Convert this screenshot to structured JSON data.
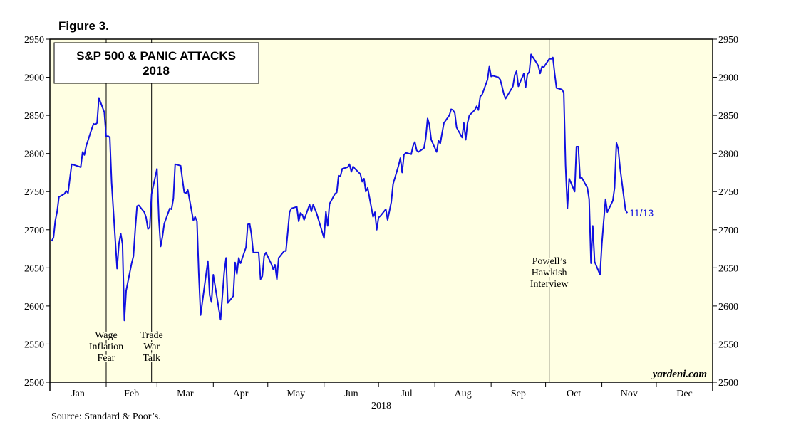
{
  "figure_label": "Figure 3.",
  "source": "Source: Standard & Poor’s.",
  "colors": {
    "line": "#1010e0",
    "plot_bg": "#ffffe3",
    "frame": "#000000"
  },
  "chart_data": {
    "type": "line",
    "title": "S&P 500 & PANIC ATTACKS",
    "subtitle": "2018",
    "xlabel": "2018",
    "ylabel": "",
    "xlim": [
      0,
      365
    ],
    "ylim": [
      2500,
      2950
    ],
    "y_ticks": [
      2500,
      2550,
      2600,
      2650,
      2700,
      2750,
      2800,
      2850,
      2900,
      2950
    ],
    "y_tick_labels": [
      "2500",
      "2550",
      "2600",
      "2650",
      "2700",
      "2750",
      "2800",
      "2850",
      "2900",
      "2950"
    ],
    "months": [
      "Jan",
      "Feb",
      "Mar",
      "Apr",
      "May",
      "Jun",
      "Jul",
      "Aug",
      "Sep",
      "Oct",
      "Nov",
      "Dec"
    ],
    "grid": false,
    "credit": "yardeni.com",
    "end_label": {
      "text": "11/13",
      "day": 316,
      "value": 2722
    },
    "annotations": [
      {
        "day": 31,
        "lines": [
          "Wage",
          "Inflation",
          "Fear"
        ],
        "anchor": "bottom"
      },
      {
        "day": 56,
        "lines": [
          "Trade",
          "War",
          "Talk"
        ],
        "anchor": "bottom"
      },
      {
        "day": 275,
        "lines": [
          "Powell’s",
          "Hawkish",
          "Interview"
        ],
        "anchor": "middle"
      }
    ],
    "series": [
      {
        "points": [
          [
            1,
            2685
          ],
          [
            2,
            2690
          ],
          [
            3,
            2712
          ],
          [
            4,
            2724
          ],
          [
            5,
            2743
          ],
          [
            8,
            2747
          ],
          [
            9,
            2751
          ],
          [
            10,
            2748
          ],
          [
            11,
            2767
          ],
          [
            12,
            2786
          ],
          [
            16,
            2783
          ],
          [
            17,
            2782
          ],
          [
            18,
            2802
          ],
          [
            19,
            2798
          ],
          [
            20,
            2810
          ],
          [
            23,
            2832
          ],
          [
            24,
            2839
          ],
          [
            25,
            2838
          ],
          [
            26,
            2840
          ],
          [
            27,
            2873
          ],
          [
            30,
            2854
          ],
          [
            31,
            2822
          ],
          [
            32,
            2823
          ],
          [
            33,
            2821
          ],
          [
            34,
            2762
          ],
          [
            37,
            2649
          ],
          [
            38,
            2681
          ],
          [
            39,
            2695
          ],
          [
            40,
            2681
          ],
          [
            41,
            2581
          ],
          [
            42,
            2620
          ],
          [
            45,
            2656
          ],
          [
            46,
            2665
          ],
          [
            47,
            2701
          ],
          [
            48,
            2731
          ],
          [
            49,
            2732
          ],
          [
            52,
            2723
          ],
          [
            53,
            2716
          ],
          [
            54,
            2701
          ],
          [
            55,
            2703
          ],
          [
            56,
            2747
          ],
          [
            59,
            2780
          ],
          [
            60,
            2714
          ],
          [
            61,
            2678
          ],
          [
            62,
            2691
          ],
          [
            63,
            2708
          ],
          [
            66,
            2728
          ],
          [
            67,
            2727
          ],
          [
            68,
            2741
          ],
          [
            69,
            2786
          ],
          [
            72,
            2784
          ],
          [
            73,
            2766
          ],
          [
            74,
            2749
          ],
          [
            75,
            2748
          ],
          [
            76,
            2752
          ],
          [
            79,
            2712
          ],
          [
            80,
            2717
          ],
          [
            81,
            2711
          ],
          [
            82,
            2643
          ],
          [
            83,
            2588
          ],
          [
            86,
            2641
          ],
          [
            87,
            2659
          ],
          [
            88,
            2614
          ],
          [
            89,
            2605
          ],
          [
            90,
            2641
          ],
          [
            94,
            2582
          ],
          [
            95,
            2614
          ],
          [
            96,
            2644
          ],
          [
            97,
            2663
          ],
          [
            98,
            2604
          ],
          [
            101,
            2613
          ],
          [
            102,
            2657
          ],
          [
            103,
            2642
          ],
          [
            104,
            2663
          ],
          [
            105,
            2656
          ],
          [
            108,
            2677
          ],
          [
            109,
            2707
          ],
          [
            110,
            2708
          ],
          [
            111,
            2694
          ],
          [
            112,
            2670
          ],
          [
            115,
            2670
          ],
          [
            116,
            2635
          ],
          [
            117,
            2639
          ],
          [
            118,
            2666
          ],
          [
            119,
            2670
          ],
          [
            122,
            2655
          ],
          [
            123,
            2648
          ],
          [
            124,
            2654
          ],
          [
            125,
            2635
          ],
          [
            126,
            2663
          ],
          [
            129,
            2672
          ],
          [
            130,
            2672
          ],
          [
            131,
            2697
          ],
          [
            132,
            2723
          ],
          [
            133,
            2728
          ],
          [
            136,
            2730
          ],
          [
            137,
            2711
          ],
          [
            138,
            2722
          ],
          [
            139,
            2720
          ],
          [
            140,
            2713
          ],
          [
            143,
            2733
          ],
          [
            144,
            2724
          ],
          [
            145,
            2733
          ],
          [
            146,
            2727
          ],
          [
            147,
            2721
          ],
          [
            151,
            2689
          ],
          [
            152,
            2724
          ],
          [
            153,
            2705
          ],
          [
            154,
            2734
          ],
          [
            157,
            2747
          ],
          [
            158,
            2749
          ],
          [
            159,
            2771
          ],
          [
            160,
            2770
          ],
          [
            161,
            2780
          ],
          [
            164,
            2782
          ],
          [
            165,
            2786
          ],
          [
            166,
            2776
          ],
          [
            167,
            2783
          ],
          [
            168,
            2780
          ],
          [
            171,
            2773
          ],
          [
            172,
            2763
          ],
          [
            173,
            2767
          ],
          [
            174,
            2750
          ],
          [
            175,
            2755
          ],
          [
            178,
            2717
          ],
          [
            179,
            2723
          ],
          [
            180,
            2700
          ],
          [
            181,
            2716
          ],
          [
            182,
            2718
          ],
          [
            185,
            2727
          ],
          [
            186,
            2713
          ],
          [
            188,
            2736
          ],
          [
            189,
            2760
          ],
          [
            192,
            2784
          ],
          [
            193,
            2794
          ],
          [
            194,
            2775
          ],
          [
            195,
            2798
          ],
          [
            196,
            2801
          ],
          [
            199,
            2799
          ],
          [
            200,
            2810
          ],
          [
            201,
            2815
          ],
          [
            202,
            2804
          ],
          [
            203,
            2802
          ],
          [
            206,
            2807
          ],
          [
            207,
            2820
          ],
          [
            208,
            2846
          ],
          [
            209,
            2838
          ],
          [
            210,
            2818
          ],
          [
            213,
            2802
          ],
          [
            214,
            2817
          ],
          [
            215,
            2813
          ],
          [
            216,
            2827
          ],
          [
            217,
            2840
          ],
          [
            220,
            2850
          ],
          [
            221,
            2858
          ],
          [
            222,
            2857
          ],
          [
            223,
            2853
          ],
          [
            224,
            2834
          ],
          [
            227,
            2821
          ],
          [
            228,
            2840
          ],
          [
            229,
            2818
          ],
          [
            230,
            2840
          ],
          [
            231,
            2850
          ],
          [
            234,
            2857
          ],
          [
            235,
            2862
          ],
          [
            236,
            2857
          ],
          [
            237,
            2875
          ],
          [
            238,
            2877
          ],
          [
            241,
            2897
          ],
          [
            242,
            2914
          ],
          [
            243,
            2901
          ],
          [
            244,
            2902
          ],
          [
            247,
            2900
          ],
          [
            248,
            2897
          ],
          [
            249,
            2888
          ],
          [
            250,
            2878
          ],
          [
            251,
            2872
          ],
          [
            255,
            2888
          ],
          [
            256,
            2903
          ],
          [
            257,
            2908
          ],
          [
            258,
            2888
          ],
          [
            261,
            2905
          ],
          [
            262,
            2887
          ],
          [
            263,
            2904
          ],
          [
            264,
            2907
          ],
          [
            265,
            2930
          ],
          [
            268,
            2919
          ],
          [
            269,
            2915
          ],
          [
            270,
            2905
          ],
          [
            271,
            2914
          ],
          [
            272,
            2913
          ],
          [
            275,
            2924
          ],
          [
            276,
            2924
          ],
          [
            277,
            2926
          ],
          [
            278,
            2905
          ],
          [
            279,
            2886
          ],
          [
            282,
            2884
          ],
          [
            283,
            2880
          ],
          [
            284,
            2785
          ],
          [
            285,
            2728
          ],
          [
            286,
            2767
          ],
          [
            289,
            2750
          ],
          [
            290,
            2809
          ],
          [
            291,
            2809
          ],
          [
            292,
            2768
          ],
          [
            293,
            2768
          ],
          [
            296,
            2755
          ],
          [
            297,
            2740
          ],
          [
            298,
            2656
          ],
          [
            299,
            2705
          ],
          [
            300,
            2658
          ],
          [
            303,
            2641
          ],
          [
            304,
            2682
          ],
          [
            305,
            2711
          ],
          [
            306,
            2740
          ],
          [
            307,
            2723
          ],
          [
            310,
            2738
          ],
          [
            311,
            2755
          ],
          [
            312,
            2814
          ],
          [
            313,
            2806
          ],
          [
            314,
            2781
          ],
          [
            317,
            2726
          ],
          [
            318,
            2722
          ]
        ]
      }
    ]
  }
}
